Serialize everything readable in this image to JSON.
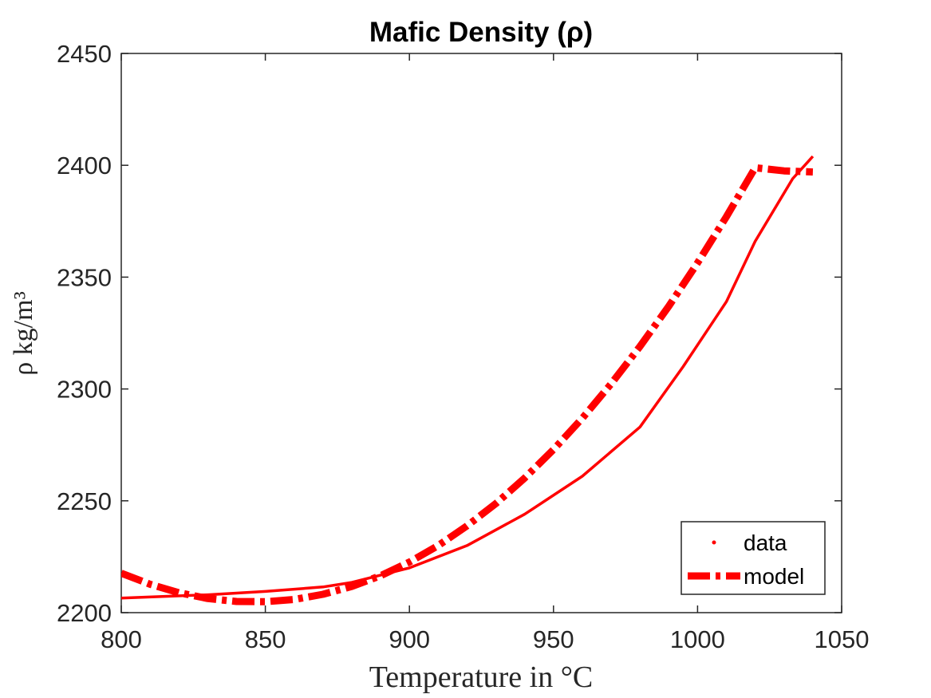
{
  "chart_data": {
    "type": "line",
    "title": "Mafic Density (ρ)",
    "xlabel": "Temperature in °C",
    "ylabel": "ρ kg/m³",
    "xlim": [
      800,
      1050
    ],
    "ylim": [
      2200,
      2450
    ],
    "xticks": [
      800,
      850,
      900,
      950,
      1000,
      1050
    ],
    "yticks": [
      2200,
      2250,
      2300,
      2350,
      2400,
      2450
    ],
    "grid": false,
    "legend_position": "bottom-right",
    "series_color": "#ff0000",
    "series": [
      {
        "name": "data",
        "style": "solid",
        "x": [
          800,
          830,
          850,
          870,
          880,
          900,
          920,
          940,
          960,
          980,
          995,
          1010,
          1020,
          1033,
          1040
        ],
        "y": [
          2206.5,
          2208,
          2209.5,
          2211.5,
          2213.5,
          2220,
          2230,
          2244,
          2261,
          2283,
          2310,
          2339,
          2366,
          2394,
          2404
        ]
      },
      {
        "name": "model",
        "style": "dash-dot",
        "x": [
          800,
          810,
          820,
          830,
          840,
          850,
          860,
          870,
          880,
          890,
          900,
          910,
          920,
          930,
          940,
          950,
          960,
          970,
          980,
          990,
          1000,
          1010,
          1020,
          1030,
          1040
        ],
        "y": [
          2217.6,
          2212.7,
          2208.9,
          2206.3,
          2205.0,
          2204.9,
          2205.9,
          2208.2,
          2211.7,
          2216.5,
          2222.6,
          2230.0,
          2238.8,
          2248.8,
          2260.2,
          2272.9,
          2286.9,
          2302.3,
          2319.0,
          2337.0,
          2356.4,
          2377.0,
          2398.9,
          2397.5,
          2397.0
        ]
      }
    ],
    "legend": [
      "data",
      "model"
    ]
  }
}
